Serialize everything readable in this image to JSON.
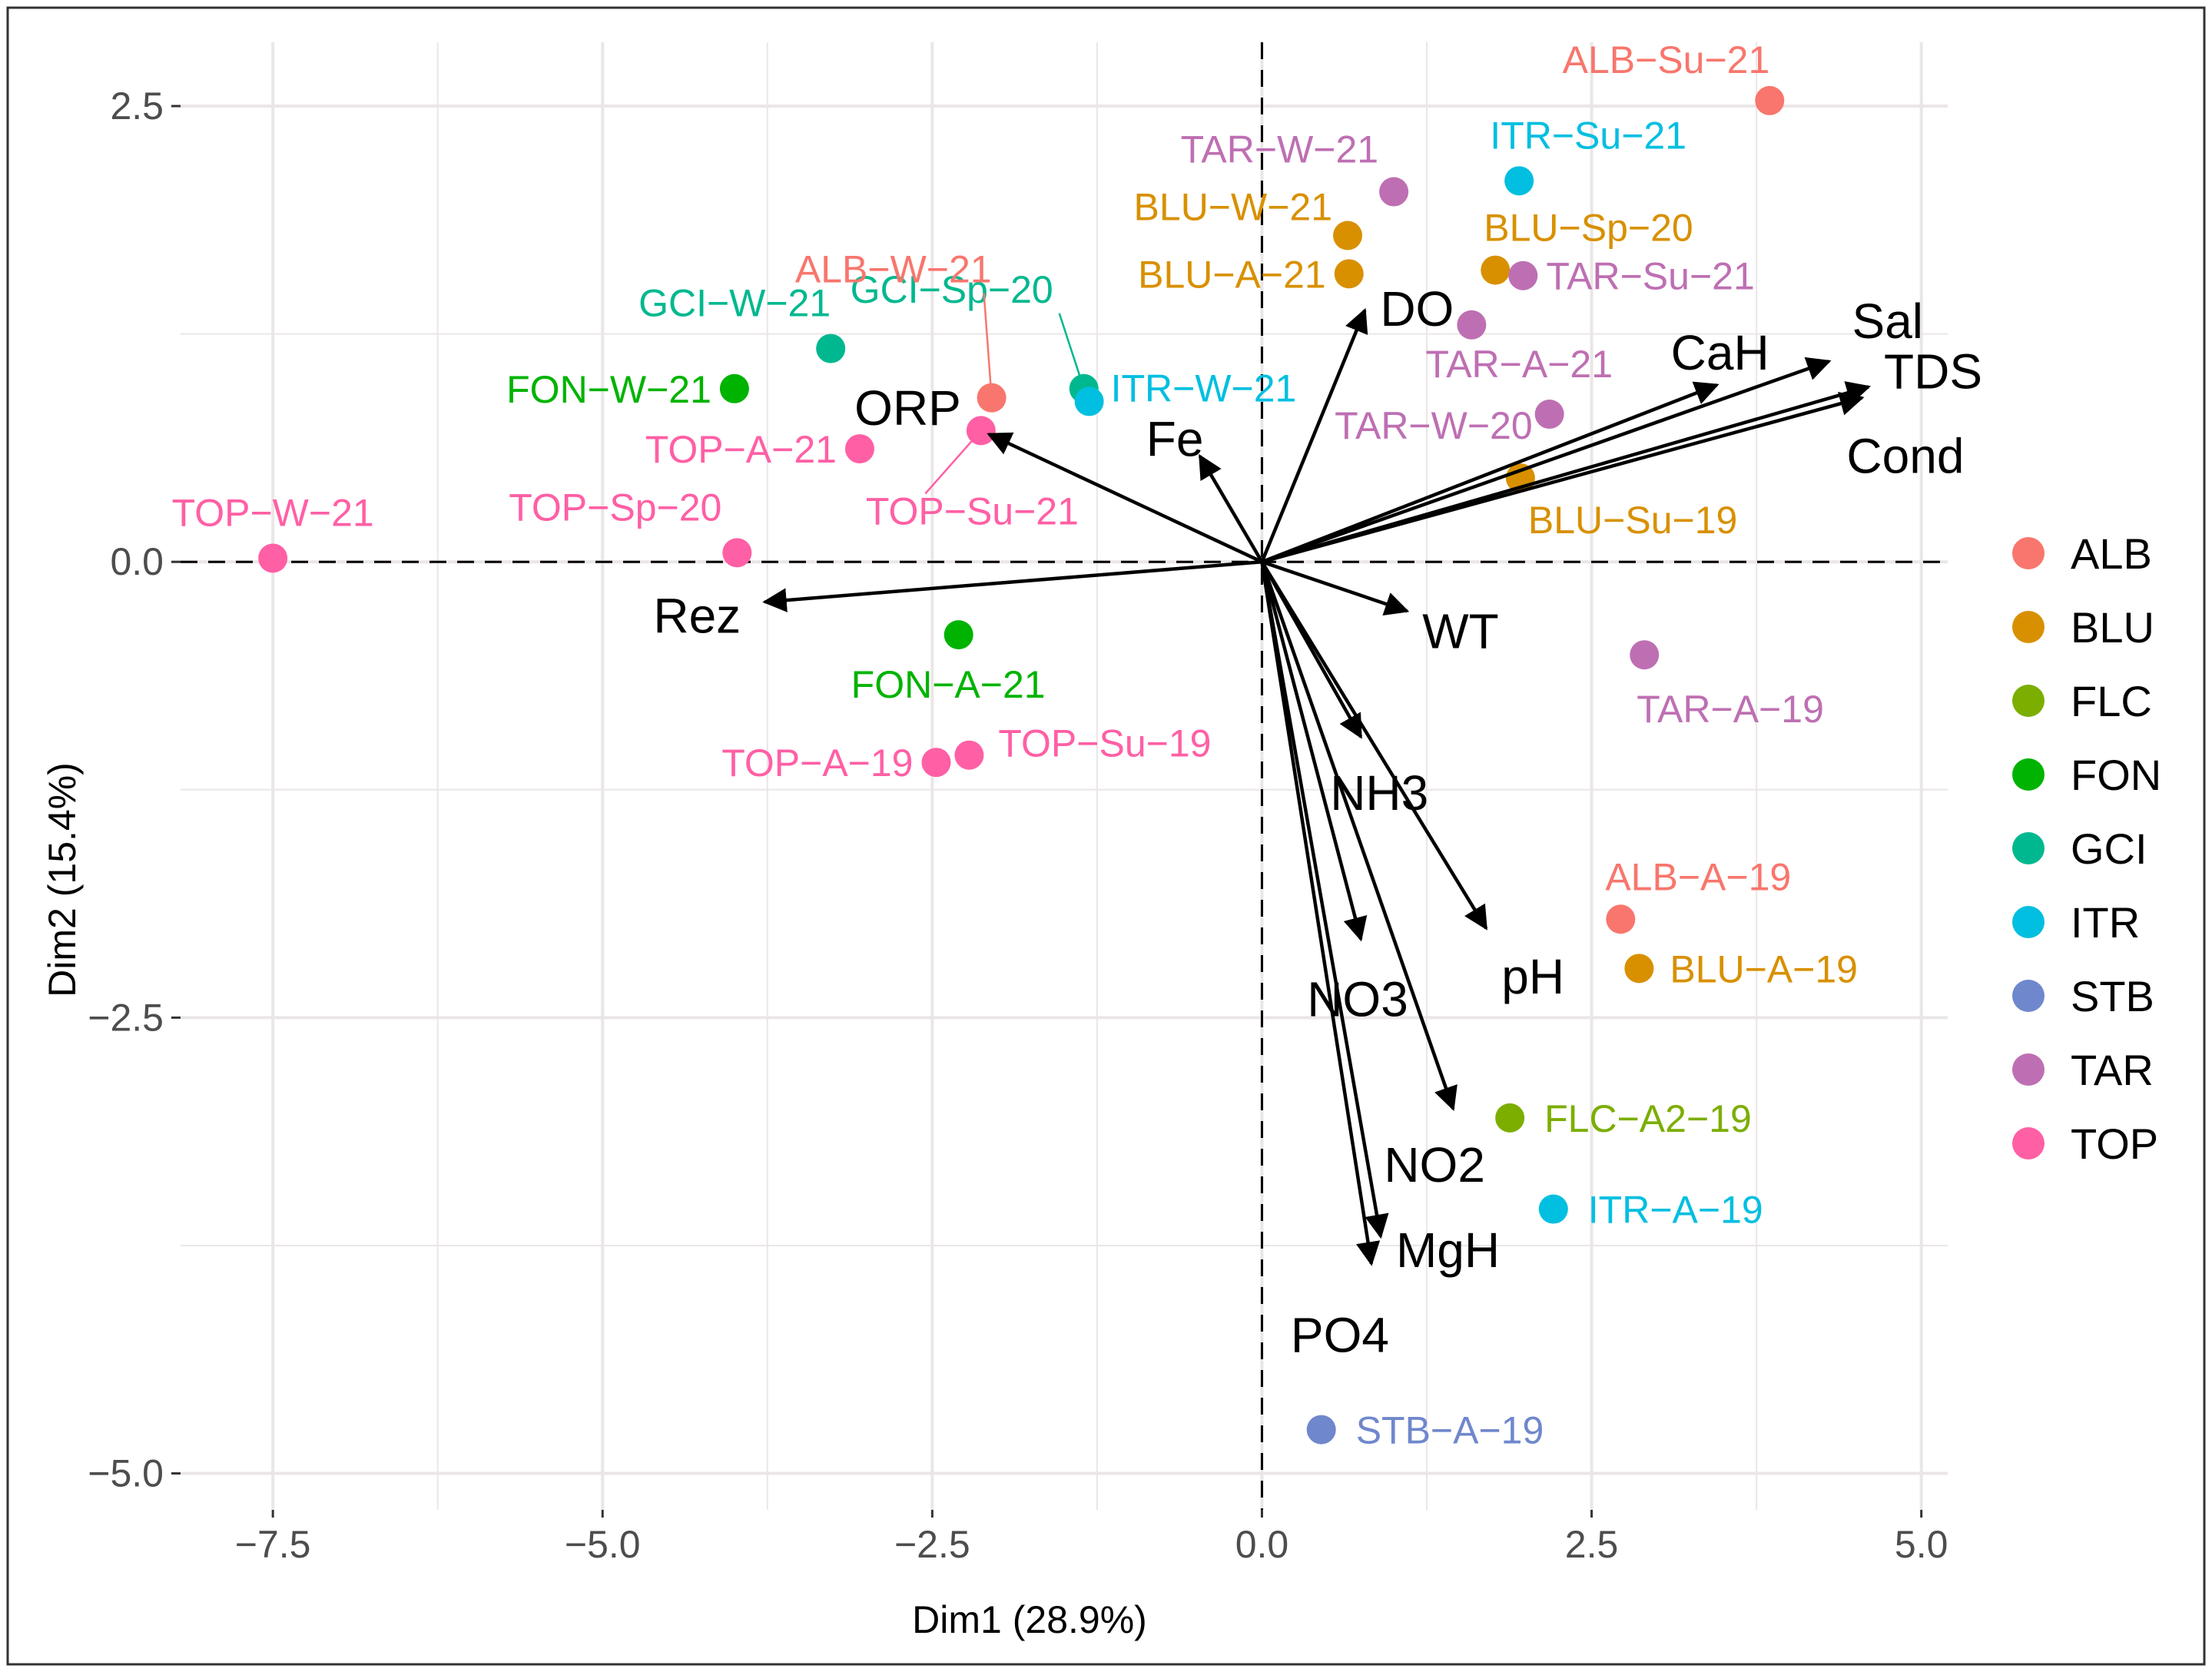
{
  "chart_data": {
    "type": "scatter",
    "subtype": "pca-biplot",
    "xlabel": "Dim1 (28.9%)",
    "ylabel": "Dim2 (15.4%)",
    "xlim": [
      -8.2,
      5.2
    ],
    "ylim": [
      -5.2,
      2.85
    ],
    "x_ticks": [
      -7.5,
      -5.0,
      -2.5,
      0.0,
      2.5,
      5.0
    ],
    "x_tick_labels": [
      "−7.5",
      "−5.0",
      "−2.5",
      "0.0",
      "2.5",
      "5.0"
    ],
    "y_ticks": [
      2.5,
      0.0,
      -2.5,
      -5.0
    ],
    "y_tick_labels": [
      "2.5",
      "0.0",
      "−2.5",
      "−5.0"
    ],
    "grid": true,
    "legend_position": "right",
    "groups": [
      {
        "name": "ALB",
        "color": "#F8766D"
      },
      {
        "name": "BLU",
        "color": "#D89000"
      },
      {
        "name": "FLC",
        "color": "#7CAE00"
      },
      {
        "name": "FON",
        "color": "#00B300"
      },
      {
        "name": "GCI",
        "color": "#00B88F"
      },
      {
        "name": "ITR",
        "color": "#00BFE0"
      },
      {
        "name": "STB",
        "color": "#6F87CC"
      },
      {
        "name": "TAR",
        "color": "#BE6FB3"
      },
      {
        "name": "TOP",
        "color": "#FF5FA5"
      }
    ],
    "points": [
      {
        "label": "ALB−Su−21",
        "group": "ALB",
        "x": 3.85,
        "y": 2.53
      },
      {
        "label": "ITR−Su−21",
        "group": "ITR",
        "x": 1.95,
        "y": 2.09
      },
      {
        "label": "TAR−W−21",
        "group": "TAR",
        "x": 1.0,
        "y": 2.03
      },
      {
        "label": "BLU−W−21",
        "group": "BLU",
        "x": 0.65,
        "y": 1.79
      },
      {
        "label": "BLU−A−21",
        "group": "BLU",
        "x": 0.66,
        "y": 1.58
      },
      {
        "label": "BLU−Sp−20",
        "group": "BLU",
        "x": 1.77,
        "y": 1.6
      },
      {
        "label": "TAR−Su−21",
        "group": "TAR",
        "x": 1.98,
        "y": 1.57
      },
      {
        "label": "TAR−A−21",
        "group": "TAR",
        "x": 1.59,
        "y": 1.3
      },
      {
        "label": "TAR−W−20",
        "group": "TAR",
        "x": 2.18,
        "y": 0.81
      },
      {
        "label": "BLU−Su−19",
        "group": "BLU",
        "x": 1.96,
        "y": 0.46
      },
      {
        "label": "GCI−Sp−20",
        "group": "GCI",
        "x": -1.35,
        "y": 0.95
      },
      {
        "label": "ITR−W−21",
        "group": "ITR",
        "x": -1.31,
        "y": 0.88
      },
      {
        "label": "ALB−W−21",
        "group": "ALB",
        "x": -2.05,
        "y": 0.9
      },
      {
        "label": "TOP−Su−21",
        "group": "TOP",
        "x": -2.13,
        "y": 0.72
      },
      {
        "label": "GCI−W−21",
        "group": "GCI",
        "x": -3.27,
        "y": 1.17
      },
      {
        "label": "FON−W−21",
        "group": "FON",
        "x": -4.0,
        "y": 0.95
      },
      {
        "label": "TOP−A−21",
        "group": "TOP",
        "x": -3.05,
        "y": 0.62
      },
      {
        "label": "TOP−W−21",
        "group": "TOP",
        "x": -7.5,
        "y": 0.02
      },
      {
        "label": "TOP−Sp−20",
        "group": "TOP",
        "x": -3.98,
        "y": 0.05
      },
      {
        "label": "FON−A−21",
        "group": "FON",
        "x": -2.3,
        "y": -0.4
      },
      {
        "label": "TOP−A−19",
        "group": "TOP",
        "x": -2.47,
        "y": -1.1
      },
      {
        "label": "TOP−Su−19",
        "group": "TOP",
        "x": -2.22,
        "y": -1.06
      },
      {
        "label": "TAR−A−19",
        "group": "TAR",
        "x": 2.9,
        "y": -0.51
      },
      {
        "label": "ALB−A−19",
        "group": "ALB",
        "x": 2.72,
        "y": -1.96
      },
      {
        "label": "BLU−A−19",
        "group": "BLU",
        "x": 2.86,
        "y": -2.23
      },
      {
        "label": "FLC−A2−19",
        "group": "FLC",
        "x": 1.88,
        "y": -3.05
      },
      {
        "label": "ITR−A−19",
        "group": "ITR",
        "x": 2.21,
        "y": -3.55
      },
      {
        "label": "STB−A−19",
        "group": "STB",
        "x": 0.45,
        "y": -4.76
      }
    ],
    "variables": [
      {
        "name": "Sal",
        "x": 4.3,
        "y": 1.1
      },
      {
        "name": "TDS",
        "x": 4.6,
        "y": 0.96
      },
      {
        "name": "Cond",
        "x": 4.55,
        "y": 0.9
      },
      {
        "name": "CaH",
        "x": 3.45,
        "y": 0.97
      },
      {
        "name": "DO",
        "x": 0.78,
        "y": 1.38
      },
      {
        "name": "Fe",
        "x": -0.47,
        "y": 0.58
      },
      {
        "name": "ORP",
        "x": -2.07,
        "y": 0.7
      },
      {
        "name": "Rez",
        "x": -3.77,
        "y": -0.22
      },
      {
        "name": "WT",
        "x": 1.1,
        "y": -0.27
      },
      {
        "name": "NH3",
        "x": 0.75,
        "y": -0.96
      },
      {
        "name": "pH",
        "x": 1.7,
        "y": -2.01
      },
      {
        "name": "NO3",
        "x": 0.75,
        "y": -2.07
      },
      {
        "name": "NO2",
        "x": 1.45,
        "y": -3.0
      },
      {
        "name": "MgH",
        "x": 0.9,
        "y": -3.7
      },
      {
        "name": "PO4",
        "x": 0.83,
        "y": -3.85
      }
    ]
  }
}
